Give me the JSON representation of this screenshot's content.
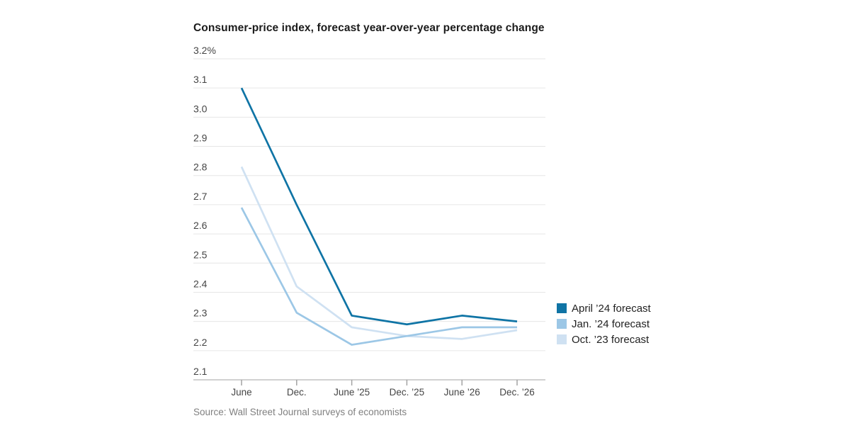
{
  "title": "Consumer-price index, forecast year-over-year percentage change",
  "source": "Source: Wall Street Journal surveys of economists",
  "colors": {
    "april24": "#0f74a5",
    "jan24": "#9cc7e6",
    "oct23": "#cfe1f2",
    "gridline": "#e6e6e6",
    "axis": "#a3a3a3",
    "tick_label": "#454545",
    "title_text": "#1b1b1b",
    "source_text": "#808080"
  },
  "chart_data": {
    "type": "line",
    "title": "Consumer-price index, forecast year-over-year percentage change",
    "x_categories": [
      "June",
      "Dec.",
      "June ’25",
      "Dec. ’25",
      "June ’26",
      "Dec. ’26"
    ],
    "y_axis": {
      "min": 2.1,
      "max": 3.2,
      "tick_step": 0.1,
      "tick_labels": [
        "2.1",
        "2.2",
        "2.3",
        "2.4",
        "2.5",
        "2.6",
        "2.7",
        "2.8",
        "2.9",
        "3.0",
        "3.1",
        "3.2%"
      ],
      "unit": "percent"
    },
    "grid": true,
    "legend_position": "right",
    "series": [
      {
        "name": "April ’24 forecast",
        "slug": "april-24-forecast",
        "color": "#0f74a5",
        "values": [
          3.1,
          2.7,
          2.32,
          2.29,
          2.32,
          2.3
        ]
      },
      {
        "name": "Jan. ’24 forecast",
        "slug": "jan-24-forecast",
        "color": "#9cc7e6",
        "values": [
          2.69,
          2.33,
          2.22,
          2.25,
          2.28,
          2.28
        ]
      },
      {
        "name": "Oct. ’23 forecast",
        "slug": "oct-23-forecast",
        "color": "#cfe1f2",
        "values": [
          2.83,
          2.42,
          2.28,
          2.25,
          2.24,
          2.27
        ]
      }
    ]
  }
}
